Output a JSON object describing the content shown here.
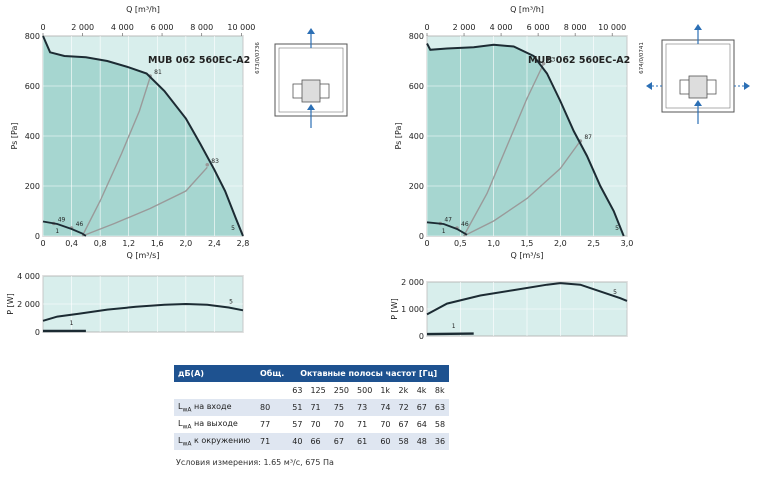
{
  "chart_data": [
    {
      "type": "line",
      "model": "MUB 062 560EC-A2",
      "code": "673/0/0736",
      "xlabel": "Q [m³/s]",
      "xlim": [
        0,
        2.8
      ],
      "xticks": [
        "0",
        "0,4",
        "0,8",
        "1,2",
        "1,6",
        "2,0",
        "2,4",
        "2,8"
      ],
      "x2label": "Q [m³/h]",
      "x2ticks": [
        "0",
        "2 000",
        "4 000",
        "6 000",
        "8 000",
        "10 000"
      ],
      "ylabel": "Ps [Pa]",
      "ylim": [
        0,
        800
      ],
      "yticks": [
        "0",
        "200",
        "400",
        "600",
        "800"
      ],
      "fan_curve": [
        [
          0,
          800
        ],
        [
          0.1,
          735
        ],
        [
          0.3,
          720
        ],
        [
          0.6,
          715
        ],
        [
          0.9,
          700
        ],
        [
          1.2,
          675
        ],
        [
          1.45,
          650
        ],
        [
          1.7,
          580
        ],
        [
          2.0,
          470
        ],
        [
          2.2,
          370
        ],
        [
          2.4,
          265
        ],
        [
          2.55,
          180
        ],
        [
          2.7,
          70
        ],
        [
          2.8,
          0
        ]
      ],
      "efficiency_points": [
        {
          "label": "49",
          "x": 0.15,
          "y": 50
        },
        {
          "label": "46",
          "x": 0.4,
          "y": 32
        },
        {
          "label": "81",
          "x": 1.5,
          "y": 640
        },
        {
          "label": "83",
          "x": 2.3,
          "y": 285
        }
      ],
      "system_curves": [
        [
          [
            0.55,
            0
          ],
          [
            0.8,
            140
          ],
          [
            1.1,
            330
          ],
          [
            1.35,
            500
          ],
          [
            1.5,
            635
          ]
        ],
        [
          [
            0.55,
            0
          ],
          [
            1.0,
            50
          ],
          [
            1.5,
            110
          ],
          [
            2.0,
            180
          ],
          [
            2.3,
            275
          ]
        ]
      ],
      "low_curve": [
        [
          0,
          58
        ],
        [
          0.2,
          48
        ],
        [
          0.4,
          28
        ],
        [
          0.55,
          10
        ],
        [
          0.6,
          0
        ]
      ],
      "low_label": "1",
      "curve_label": "5",
      "power": {
        "ylabel": "P [W]",
        "ylim": [
          0,
          4000
        ],
        "yticks": [
          "0",
          "2 000",
          "4 000"
        ],
        "curve": [
          [
            0,
            800
          ],
          [
            0.2,
            1100
          ],
          [
            0.5,
            1300
          ],
          [
            0.9,
            1600
          ],
          [
            1.3,
            1800
          ],
          [
            1.7,
            1950
          ],
          [
            2.0,
            2000
          ],
          [
            2.3,
            1950
          ],
          [
            2.6,
            1750
          ],
          [
            2.8,
            1550
          ]
        ],
        "low_curve": [
          [
            0,
            70
          ],
          [
            0.6,
            80
          ]
        ],
        "curve_label": "5",
        "low_label": "1"
      }
    },
    {
      "type": "line",
      "model": "MUB 062 560EC-A2",
      "code": "674/0/0741",
      "xlabel": "Q [m³/s]",
      "xlim": [
        0,
        3.0
      ],
      "xticks": [
        "0",
        "0,5",
        "1,0",
        "1,5",
        "2,0",
        "2,5",
        "3,0"
      ],
      "x2label": "Q [m³/h]",
      "x2ticks": [
        "0",
        "2 000",
        "4 000",
        "6 000",
        "8 000",
        "10 000"
      ],
      "ylabel": "Ps [Pa]",
      "ylim": [
        0,
        800
      ],
      "yticks": [
        "0",
        "200",
        "400",
        "600",
        "800"
      ],
      "fan_curve": [
        [
          0,
          770
        ],
        [
          0.05,
          745
        ],
        [
          0.3,
          750
        ],
        [
          0.7,
          755
        ],
        [
          1.0,
          765
        ],
        [
          1.3,
          758
        ],
        [
          1.6,
          720
        ],
        [
          1.8,
          650
        ],
        [
          2.0,
          540
        ],
        [
          2.2,
          420
        ],
        [
          2.4,
          320
        ],
        [
          2.6,
          200
        ],
        [
          2.8,
          100
        ],
        [
          2.95,
          0
        ]
      ],
      "efficiency_points": [
        {
          "label": "47",
          "x": 0.2,
          "y": 50
        },
        {
          "label": "46",
          "x": 0.45,
          "y": 32
        },
        {
          "label": "83",
          "x": 1.75,
          "y": 690
        },
        {
          "label": "87",
          "x": 2.3,
          "y": 380
        }
      ],
      "system_curves": [
        [
          [
            0.55,
            0
          ],
          [
            0.9,
            170
          ],
          [
            1.2,
            360
          ],
          [
            1.5,
            550
          ],
          [
            1.75,
            690
          ]
        ],
        [
          [
            0.55,
            0
          ],
          [
            1.0,
            60
          ],
          [
            1.5,
            150
          ],
          [
            2.0,
            270
          ],
          [
            2.3,
            380
          ]
        ]
      ],
      "low_curve": [
        [
          0,
          55
        ],
        [
          0.25,
          48
        ],
        [
          0.45,
          28
        ],
        [
          0.6,
          5
        ]
      ],
      "low_label": "1",
      "curve_label": "5",
      "power": {
        "ylabel": "P [W]",
        "ylim": [
          0,
          2000
        ],
        "yticks": [
          "0",
          "1 000",
          "2 000"
        ],
        "curve": [
          [
            0,
            800
          ],
          [
            0.3,
            1200
          ],
          [
            0.8,
            1500
          ],
          [
            1.3,
            1700
          ],
          [
            1.8,
            1900
          ],
          [
            2.0,
            1960
          ],
          [
            2.3,
            1900
          ],
          [
            2.6,
            1650
          ],
          [
            2.9,
            1400
          ],
          [
            3.0,
            1300
          ]
        ],
        "low_curve": [
          [
            0,
            70
          ],
          [
            0.7,
            90
          ]
        ],
        "curve_label": "5",
        "low_label": "1"
      }
    },
    {
      "type": "table",
      "headers": [
        "дБ(A)",
        "Общ.",
        "Октавные полосы частот [Гц]"
      ],
      "bands": [
        "63",
        "125",
        "250",
        "500",
        "1k",
        "2k",
        "4k",
        "8k"
      ],
      "rows": [
        {
          "label": "L",
          "sub": "wA",
          "suffix": " на входе",
          "total": "80",
          "values": [
            "51",
            "71",
            "75",
            "73",
            "74",
            "72",
            "67",
            "63"
          ]
        },
        {
          "label": "L",
          "sub": "wA",
          "suffix": " на выходе",
          "total": "77",
          "values": [
            "57",
            "70",
            "70",
            "71",
            "70",
            "67",
            "64",
            "58"
          ]
        },
        {
          "label": "L",
          "sub": "wA",
          "suffix": " к окружению",
          "total": "71",
          "values": [
            "40",
            "66",
            "67",
            "61",
            "60",
            "58",
            "48",
            "36"
          ]
        }
      ]
    }
  ],
  "footnote": "Условия измерения: 1.65 м³/с, 675 Па"
}
